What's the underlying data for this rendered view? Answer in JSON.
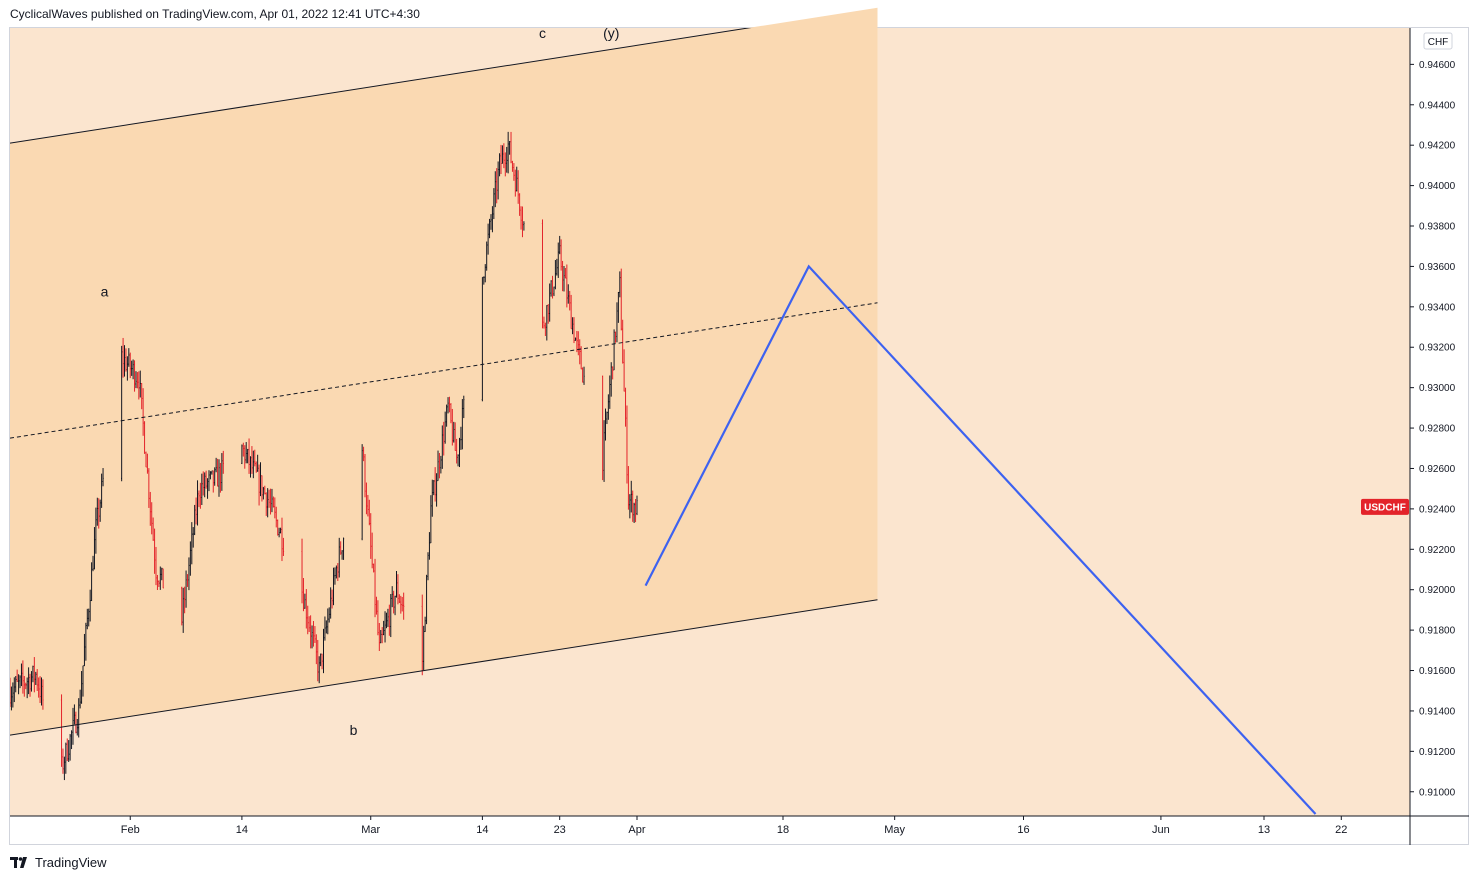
{
  "header": {
    "published_text": "CyclicalWaves published on TradingView.com, Apr 01, 2022 12:41 UTC+4:30"
  },
  "footer": {
    "brand": "TradingView"
  },
  "colors": {
    "page_bg": "#fbe5cf",
    "channel_fill": "#fad9b2",
    "bar_up": "#131722",
    "bar_down": "#e3232a",
    "projection": "#3d62f0",
    "symbol_badge": "#e3232a",
    "channel_line": "#131722"
  },
  "chart_data": {
    "type": "ohlc",
    "symbol": "USDCHF",
    "currency": "CHF",
    "y_ticks": [
      "0.94600",
      "0.94400",
      "0.94200",
      "0.94000",
      "0.93800",
      "0.93600",
      "0.93400",
      "0.93200",
      "0.93000",
      "0.92800",
      "0.92600",
      "0.92400",
      "0.92200",
      "0.92000",
      "0.91800",
      "0.91600",
      "0.91400",
      "0.91200",
      "0.91000"
    ],
    "ylim": [
      0.9088,
      0.9478
    ],
    "x_ticks": [
      {
        "label": "Feb",
        "date": "2022-02-01"
      },
      {
        "label": "14",
        "date": "2022-02-14"
      },
      {
        "label": "Mar",
        "date": "2022-03-01"
      },
      {
        "label": "14",
        "date": "2022-03-14"
      },
      {
        "label": "23",
        "date": "2022-03-23"
      },
      {
        "label": "Apr",
        "date": "2022-04-01"
      },
      {
        "label": "18",
        "date": "2022-04-18"
      },
      {
        "label": "May",
        "date": "2022-05-01"
      },
      {
        "label": "16",
        "date": "2022-05-16"
      },
      {
        "label": "Jun",
        "date": "2022-06-01"
      },
      {
        "label": "13",
        "date": "2022-06-13"
      },
      {
        "label": "22",
        "date": "2022-06-22"
      }
    ],
    "xlim": [
      "2022-01-18",
      "2022-06-30"
    ],
    "last_price_label": "USDCHF",
    "last_price": 0.9241,
    "price_path": [
      [
        "2022-01-18",
        0.915
      ],
      [
        "2022-01-21",
        0.9158
      ],
      [
        "2022-01-24",
        0.9112
      ],
      [
        "2022-01-26",
        0.914
      ],
      [
        "2022-01-28",
        0.923
      ],
      [
        "2022-01-31",
        0.9315
      ],
      [
        "2022-02-02",
        0.9305
      ],
      [
        "2022-02-04",
        0.921
      ],
      [
        "2022-02-07",
        0.9185
      ],
      [
        "2022-02-09",
        0.925
      ],
      [
        "2022-02-11",
        0.9255
      ],
      [
        "2022-02-14",
        0.927
      ],
      [
        "2022-02-17",
        0.9245
      ],
      [
        "2022-02-21",
        0.92
      ],
      [
        "2022-02-23",
        0.916
      ],
      [
        "2022-02-25",
        0.921
      ],
      [
        "2022-02-28",
        0.927
      ],
      [
        "2022-03-02",
        0.917
      ],
      [
        "2022-03-04",
        0.92
      ],
      [
        "2022-03-07",
        0.9165
      ],
      [
        "2022-03-08",
        0.924
      ],
      [
        "2022-03-10",
        0.929
      ],
      [
        "2022-03-11",
        0.9265
      ],
      [
        "2022-03-14",
        0.9355
      ],
      [
        "2022-03-16",
        0.941
      ],
      [
        "2022-03-17",
        0.942
      ],
      [
        "2022-03-18",
        0.94
      ],
      [
        "2022-03-21",
        0.933
      ],
      [
        "2022-03-23",
        0.9365
      ],
      [
        "2022-03-25",
        0.932
      ],
      [
        "2022-03-28",
        0.9265
      ],
      [
        "2022-03-30",
        0.935
      ],
      [
        "2022-03-31",
        0.9245
      ],
      [
        "2022-04-01",
        0.924
      ]
    ],
    "wave_labels": [
      {
        "text": "a",
        "date": "2022-01-29",
        "price": 0.9345
      },
      {
        "text": "b",
        "date": "2022-02-27",
        "price": 0.9128
      },
      {
        "text": "c",
        "date": "2022-03-21",
        "price": 0.9473
      },
      {
        "text": "(y)",
        "date": "2022-03-29",
        "price": 0.9473
      }
    ],
    "channel": {
      "upper": [
        [
          "2022-01-18",
          0.9421
        ],
        [
          "2022-04-29",
          0.9488
        ]
      ],
      "lower": [
        [
          "2022-01-18",
          0.9128
        ],
        [
          "2022-04-29",
          0.9195
        ]
      ],
      "mid": [
        [
          "2022-01-18",
          0.9275
        ],
        [
          "2022-04-29",
          0.9342
        ]
      ],
      "shade_end": "2022-04-29"
    },
    "projection": [
      [
        "2022-04-02",
        0.9202
      ],
      [
        "2022-04-21",
        0.936
      ],
      [
        "2022-06-19",
        0.9089
      ]
    ]
  }
}
